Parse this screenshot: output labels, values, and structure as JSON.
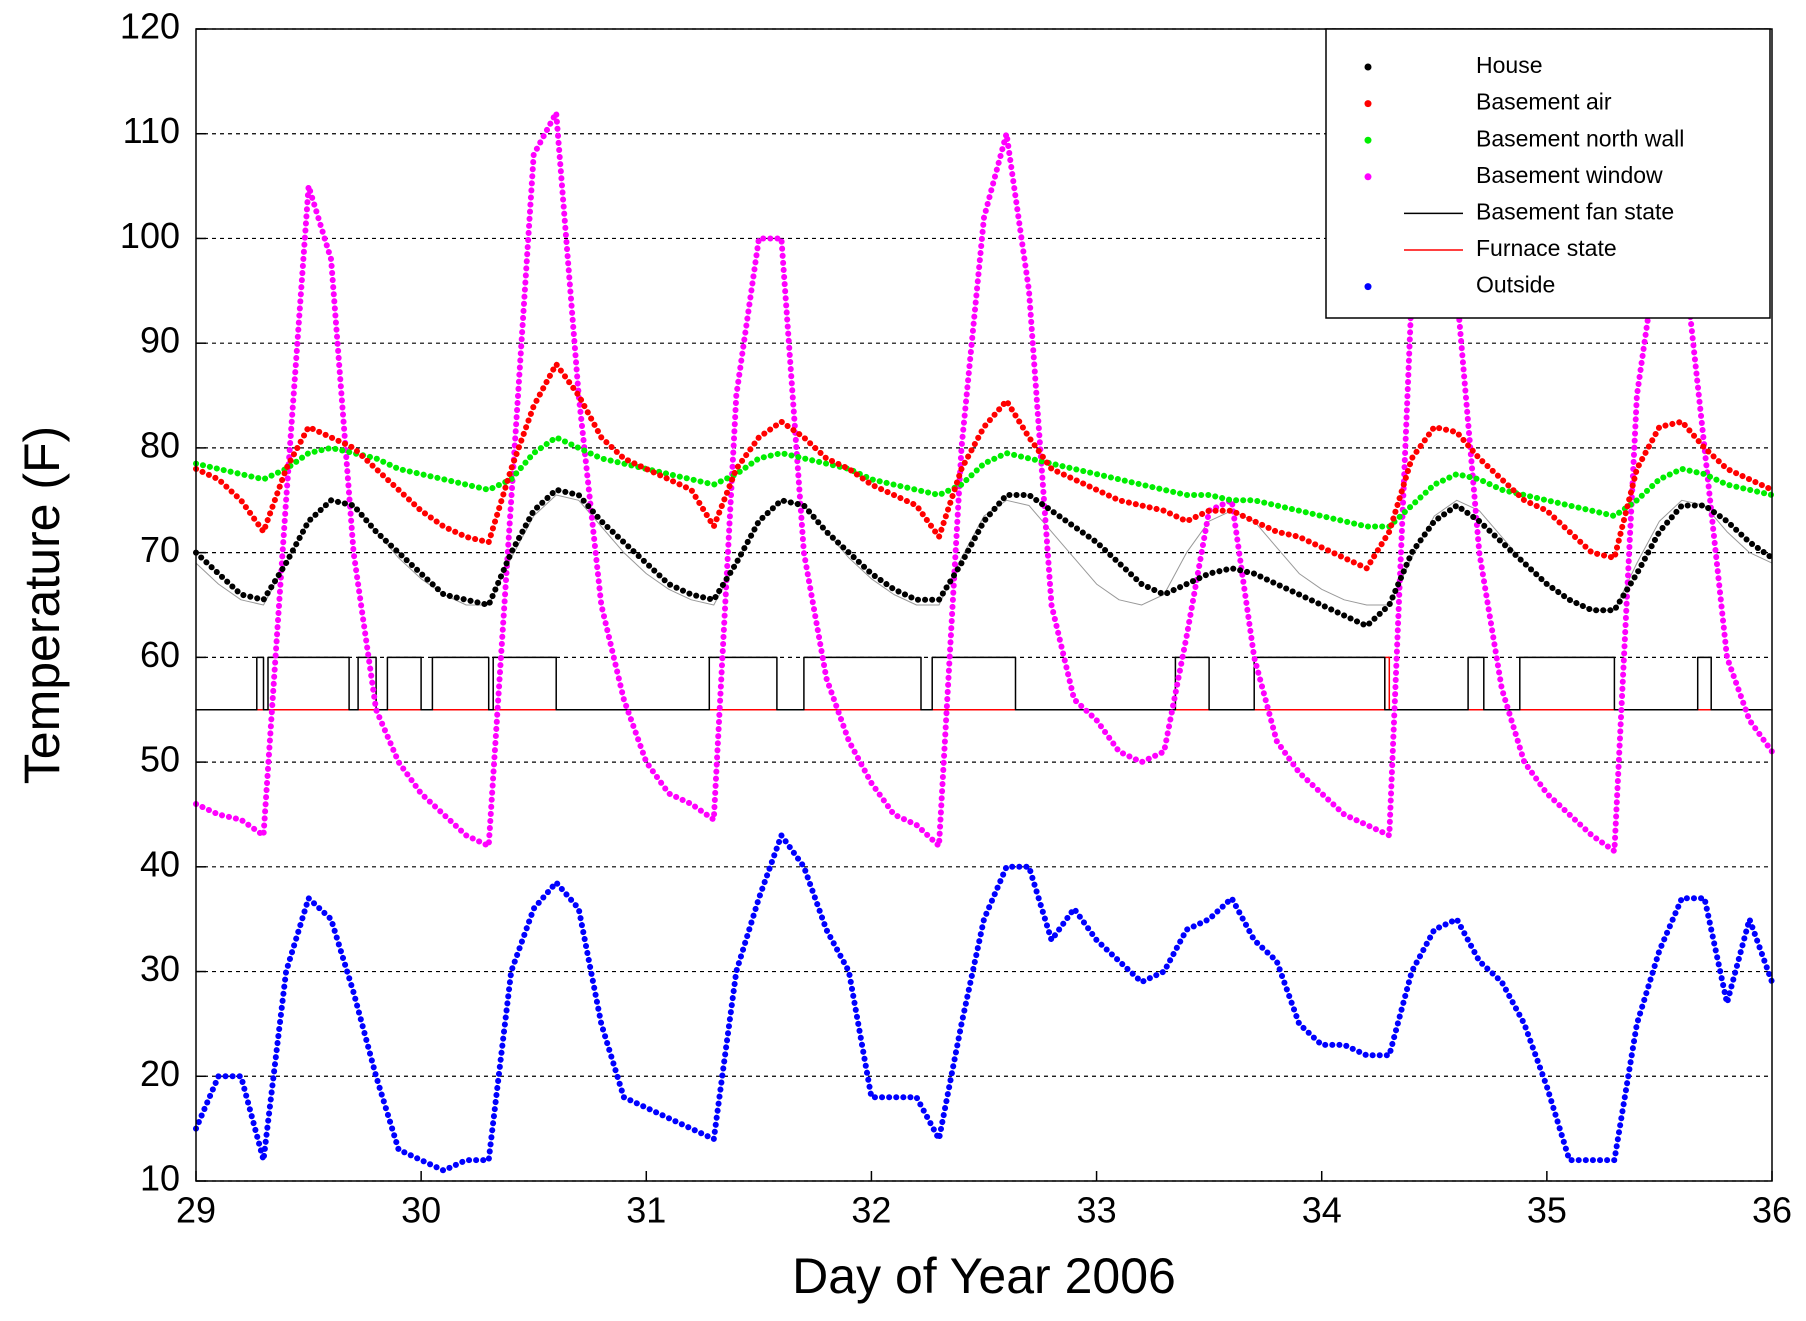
{
  "chart_data": {
    "type": "scatter",
    "xlabel": "Day of Year 2006",
    "ylabel": "Temperature (F)",
    "xlim": [
      29,
      36
    ],
    "ylim": [
      10,
      120
    ],
    "xticks": [
      29,
      30,
      31,
      32,
      33,
      34,
      35,
      36
    ],
    "yticks": [
      10,
      20,
      30,
      40,
      50,
      60,
      70,
      80,
      90,
      100,
      110,
      120
    ],
    "grid": true,
    "legend": "upper right",
    "x": [
      29,
      29.1,
      29.2,
      29.3,
      29.4,
      29.5,
      29.6,
      29.7,
      29.8,
      29.9,
      30,
      30.1,
      30.2,
      30.3,
      30.4,
      30.5,
      30.6,
      30.7,
      30.8,
      30.9,
      31,
      31.1,
      31.2,
      31.3,
      31.4,
      31.5,
      31.6,
      31.7,
      31.8,
      31.9,
      32,
      32.1,
      32.2,
      32.3,
      32.4,
      32.5,
      32.6,
      32.7,
      32.8,
      32.9,
      33,
      33.1,
      33.2,
      33.3,
      33.4,
      33.5,
      33.6,
      33.7,
      33.8,
      33.9,
      34,
      34.1,
      34.2,
      34.3,
      34.4,
      34.5,
      34.6,
      34.7,
      34.8,
      34.9,
      35,
      35.1,
      35.2,
      35.3,
      35.4,
      35.5,
      35.6,
      35.7,
      35.8,
      35.9,
      36
    ],
    "series": [
      {
        "name": "House",
        "color": "#000000",
        "style": "dots",
        "values": [
          70,
          68,
          66,
          65.5,
          69,
          73,
          75,
          74.5,
          72,
          70,
          68,
          66,
          65.5,
          65,
          70,
          74,
          76,
          75.5,
          73,
          71,
          69,
          67,
          66,
          65.5,
          69,
          73,
          75,
          74.5,
          72,
          70,
          68,
          66.5,
          65.5,
          65.5,
          69,
          73,
          75.5,
          75.5,
          74,
          72.5,
          71,
          69,
          67,
          66,
          67,
          68,
          68.5,
          68,
          67,
          66,
          65,
          64,
          63,
          65,
          70,
          73,
          74.5,
          73,
          71,
          69,
          67,
          65.5,
          64.5,
          64.5,
          68,
          72,
          74.5,
          74.5,
          73,
          71,
          69.5
        ]
      },
      {
        "name": "Basement air",
        "color": "#ff0000",
        "style": "dots",
        "values": [
          78,
          77,
          75,
          72,
          78,
          82,
          81,
          80,
          78,
          76,
          74,
          72.5,
          71.5,
          71,
          78,
          84,
          88,
          85,
          81,
          79,
          78,
          77,
          76,
          72.5,
          78,
          81,
          82.5,
          81,
          79,
          78,
          76.5,
          75.5,
          74.5,
          71.5,
          78,
          82,
          84.5,
          81,
          78,
          77,
          76,
          75,
          74.5,
          74,
          73,
          74,
          74,
          73,
          72,
          71.5,
          70.5,
          69.5,
          68.5,
          72,
          79,
          82,
          81.5,
          79,
          77,
          75,
          74,
          72,
          70,
          69.5,
          78,
          82,
          82.5,
          80,
          78,
          77,
          76
        ]
      },
      {
        "name": "Basement north wall",
        "color": "#00ee00",
        "style": "dots",
        "values": [
          78.5,
          78,
          77.5,
          77,
          78,
          79.5,
          80,
          79.5,
          79,
          78,
          77.5,
          77,
          76.5,
          76,
          77,
          79.5,
          81,
          80,
          79,
          78.5,
          78,
          77.5,
          77,
          76.5,
          77.5,
          79,
          79.5,
          79,
          78.5,
          78,
          77,
          76.5,
          76,
          75.5,
          76.5,
          78.5,
          79.5,
          79,
          78.5,
          78,
          77.5,
          77,
          76.5,
          76,
          75.5,
          75.5,
          75,
          75,
          74.5,
          74,
          73.5,
          73,
          72.5,
          72.5,
          74.5,
          76.5,
          77.5,
          77,
          76,
          75.5,
          75,
          74.5,
          74,
          73.5,
          75,
          77,
          78,
          77.5,
          76.5,
          76,
          75.5
        ]
      },
      {
        "name": "Basement window",
        "color": "#ff00ff",
        "style": "dots",
        "values": [
          46,
          45,
          44.5,
          43,
          75,
          105,
          98,
          70,
          55,
          50,
          47,
          45,
          43,
          42,
          75,
          108,
          112,
          85,
          65,
          56,
          50,
          47,
          46,
          44.5,
          85,
          100,
          100,
          70,
          58,
          52,
          48,
          45,
          44,
          42,
          80,
          102,
          110,
          95,
          65,
          56,
          54,
          51,
          50,
          51,
          62,
          74,
          75,
          60,
          52,
          49,
          47,
          45,
          44,
          43,
          95,
          100,
          95,
          70,
          57,
          50,
          47,
          45,
          43,
          41.5,
          85,
          100,
          100,
          80,
          60,
          54,
          51
        ]
      },
      {
        "name": "Basement fan state",
        "color": "#000000",
        "style": "line",
        "x": [
          29,
          29.27,
          29.27,
          29.3,
          29.3,
          29.32,
          29.32,
          29.68,
          29.68,
          29.72,
          29.72,
          29.8,
          29.8,
          29.85,
          29.85,
          30,
          30,
          30.05,
          30.05,
          30.3,
          30.3,
          30.32,
          30.32,
          30.6,
          30.6,
          31.28,
          31.28,
          31.58,
          31.58,
          31.7,
          31.7,
          32.22,
          32.22,
          32.27,
          32.27,
          32.64,
          32.64,
          33.35,
          33.35,
          33.5,
          33.5,
          33.7,
          33.7,
          34.28,
          34.28,
          34.65,
          34.65,
          34.72,
          34.72,
          34.88,
          34.88,
          35.3,
          35.3,
          35.67,
          35.67,
          35.73,
          35.73,
          36
        ],
        "values": [
          55,
          55,
          60,
          60,
          55,
          55,
          60,
          60,
          55,
          55,
          60,
          60,
          55,
          55,
          60,
          60,
          55,
          55,
          60,
          60,
          55,
          55,
          60,
          60,
          55,
          55,
          60,
          60,
          55,
          55,
          60,
          60,
          55,
          55,
          60,
          60,
          55,
          55,
          60,
          60,
          55,
          55,
          60,
          60,
          55,
          55,
          60,
          60,
          55,
          55,
          60,
          60,
          55,
          55,
          60,
          60,
          55,
          55
        ]
      },
      {
        "name": "Furnace state",
        "color": "#ff0000",
        "style": "line",
        "x": [
          29,
          34.28,
          34.28,
          34.3,
          34.3,
          36
        ],
        "values": [
          55,
          55,
          60,
          60,
          55,
          55
        ]
      },
      {
        "name": "Outside",
        "color": "#0000ff",
        "style": "dots",
        "values": [
          15,
          20,
          20,
          12,
          30,
          37,
          35,
          28,
          20,
          13,
          12,
          11,
          12,
          12,
          30,
          36,
          38.5,
          36,
          25,
          18,
          17,
          16,
          15,
          14,
          30,
          37,
          43,
          40,
          34,
          30,
          18,
          18,
          18,
          14,
          25,
          35,
          40,
          40,
          33,
          36,
          33,
          31,
          29,
          30,
          34,
          35,
          37,
          33,
          31,
          25,
          23,
          23,
          22,
          22,
          30,
          34,
          35,
          31,
          29,
          25,
          19,
          12,
          12,
          12,
          25,
          32,
          37,
          37,
          27,
          35,
          29
        ]
      },
      {
        "color": "#999999",
        "style": "thin",
        "values": [
          69,
          67,
          65.5,
          65,
          69,
          73,
          75,
          74.5,
          72,
          69.5,
          67.5,
          66,
          65,
          65,
          69.5,
          73.5,
          75.5,
          75,
          72.5,
          70,
          68,
          66.5,
          65.5,
          65,
          69,
          73,
          75,
          74.5,
          72,
          69.5,
          67.5,
          66,
          65,
          65,
          69.5,
          73.5,
          75,
          74.5,
          72,
          69.5,
          67,
          65.5,
          65,
          66,
          70,
          73,
          74,
          73,
          70.5,
          68,
          66.5,
          65.5,
          65,
          65,
          69.5,
          73.5,
          75,
          74,
          71.5,
          69,
          67,
          65.5,
          64.5,
          64.5,
          69,
          73,
          75,
          74.5,
          72,
          70,
          69
        ]
      }
    ]
  }
}
